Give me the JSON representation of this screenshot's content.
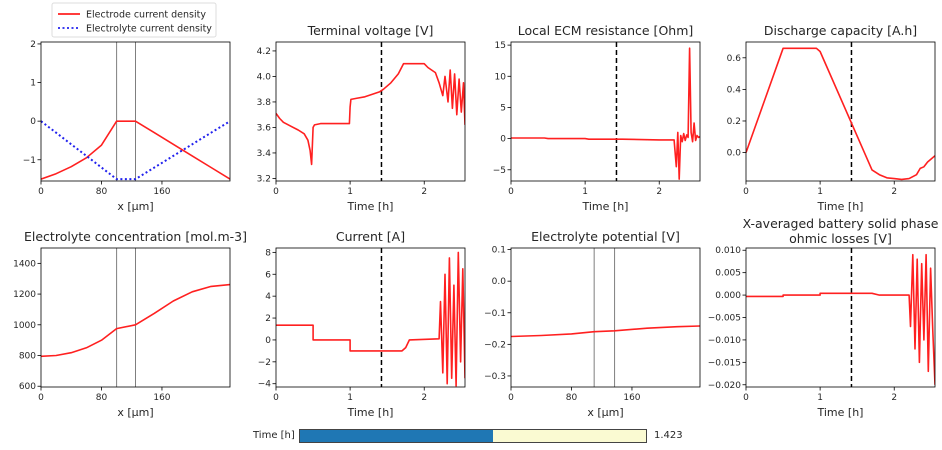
{
  "legend": {
    "entries": [
      {
        "label": "Electrode current density",
        "color": "#ff2020",
        "style": "solid"
      },
      {
        "label": "Electrolyte current density",
        "color": "#2222ee",
        "style": "dotted"
      }
    ]
  },
  "slider": {
    "label": "Time [h]",
    "value_text": "1.423",
    "value": 1.423,
    "min": 0,
    "max": 2.55,
    "fill_color": "#1f77b4",
    "track_color": "#fafad2"
  },
  "chart_data": [
    {
      "type": "line",
      "title": "",
      "xlabel": "x [μm]",
      "ylabel": "",
      "xlim": [
        0,
        250
      ],
      "ylim": [
        -1.55,
        2.05
      ],
      "xticks": [
        0,
        80,
        160
      ],
      "yticks": [
        -1,
        0,
        1,
        2
      ],
      "tick_labels_x": [
        "0",
        "80",
        "160"
      ],
      "tick_labels_y": [
        "−1",
        "0",
        "1",
        "2"
      ],
      "vlines": [
        100,
        125
      ],
      "marker_time": null,
      "series": [
        {
          "name": "Electrode current density",
          "color": "#ff2020",
          "dash": "solid",
          "x": [
            0,
            20,
            40,
            60,
            80,
            100,
            125,
            150,
            175,
            200,
            225,
            250
          ],
          "y": [
            -1.5,
            -1.36,
            -1.18,
            -0.95,
            -0.62,
            0,
            0,
            -0.3,
            -0.6,
            -0.9,
            -1.2,
            -1.5
          ]
        },
        {
          "name": "Electrolyte current density",
          "color": "#2222ee",
          "dash": "dotted",
          "x": [
            0,
            20,
            40,
            60,
            80,
            100,
            125,
            150,
            175,
            200,
            225,
            250
          ],
          "y": [
            0,
            -0.3,
            -0.6,
            -0.9,
            -1.2,
            -1.5,
            -1.5,
            -1.2,
            -0.9,
            -0.6,
            -0.3,
            0
          ]
        }
      ]
    },
    {
      "type": "line",
      "title": "Terminal voltage [V]",
      "xlabel": "Time [h]",
      "ylabel": "",
      "xlim": [
        0,
        2.55
      ],
      "ylim": [
        3.18,
        4.27
      ],
      "xticks": [
        0,
        1,
        2
      ],
      "yticks": [
        3.2,
        3.4,
        3.6,
        3.8,
        4.0,
        4.2
      ],
      "tick_labels_x": [
        "0",
        "1",
        "2"
      ],
      "tick_labels_y": [
        "3.2",
        "3.4",
        "3.6",
        "3.8",
        "4.0",
        "4.2"
      ],
      "vlines": [],
      "marker_time": 1.423,
      "series": [
        {
          "name": "Terminal voltage",
          "color": "#ff2020",
          "dash": "solid",
          "x": [
            0,
            0.05,
            0.1,
            0.2,
            0.3,
            0.38,
            0.43,
            0.46,
            0.48,
            0.5,
            0.52,
            0.6,
            0.8,
            0.99,
            1.0,
            1.01,
            1.1,
            1.2,
            1.3,
            1.4,
            1.45,
            1.55,
            1.65,
            1.72,
            1.8,
            2.0,
            2.05,
            2.15,
            2.2,
            2.25,
            2.28,
            2.32,
            2.35,
            2.38,
            2.41,
            2.44,
            2.47,
            2.5,
            2.53,
            2.55
          ],
          "y": [
            3.71,
            3.67,
            3.64,
            3.61,
            3.58,
            3.55,
            3.5,
            3.42,
            3.31,
            3.6,
            3.62,
            3.63,
            3.63,
            3.63,
            3.76,
            3.82,
            3.83,
            3.84,
            3.86,
            3.88,
            3.9,
            3.95,
            4.02,
            4.1,
            4.1,
            4.1,
            4.07,
            4.03,
            3.95,
            3.85,
            4.0,
            3.8,
            4.05,
            3.75,
            4.02,
            3.7,
            3.98,
            3.72,
            3.95,
            3.62
          ]
        }
      ]
    },
    {
      "type": "line",
      "title": "Local ECM resistance [Ohm]",
      "xlabel": "Time [h]",
      "ylabel": "",
      "xlim": [
        0,
        2.55
      ],
      "ylim": [
        -6.8,
        15.5
      ],
      "xticks": [
        0,
        1,
        2
      ],
      "yticks": [
        -5,
        0,
        5,
        10,
        15
      ],
      "tick_labels_x": [
        "0",
        "1",
        "2"
      ],
      "tick_labels_y": [
        "−5",
        "0",
        "5",
        "10",
        "15"
      ],
      "vlines": [],
      "marker_time": 1.423,
      "series": [
        {
          "name": "Local ECM resistance",
          "color": "#ff2020",
          "dash": "solid",
          "x": [
            0,
            0.45,
            0.5,
            1.0,
            1.05,
            1.5,
            2.0,
            2.2,
            2.23,
            2.25,
            2.27,
            2.29,
            2.31,
            2.33,
            2.35,
            2.37,
            2.39,
            2.41,
            2.43,
            2.45,
            2.47,
            2.49,
            2.51,
            2.53,
            2.55
          ],
          "y": [
            0.1,
            0.1,
            0.0,
            0.0,
            -0.1,
            -0.1,
            -0.2,
            -0.2,
            -4.5,
            1.0,
            -6.5,
            0.5,
            -0.5,
            0.8,
            -0.3,
            0.6,
            0.2,
            14.5,
            1.0,
            -0.5,
            2.5,
            -0.3,
            0.5,
            0.2,
            0.3
          ]
        }
      ]
    },
    {
      "type": "line",
      "title": "Discharge capacity [A.h]",
      "xlabel": "Time [h]",
      "ylabel": "",
      "xlim": [
        0,
        2.55
      ],
      "ylim": [
        -0.18,
        0.7
      ],
      "xticks": [
        0,
        1,
        2
      ],
      "yticks": [
        0.0,
        0.2,
        0.4,
        0.6
      ],
      "tick_labels_x": [
        "0",
        "1",
        "2"
      ],
      "tick_labels_y": [
        "0.0",
        "0.2",
        "0.4",
        "0.6"
      ],
      "vlines": [],
      "marker_time": 1.423,
      "series": [
        {
          "name": "Discharge capacity",
          "color": "#ff2020",
          "dash": "solid",
          "x": [
            0,
            0.5,
            0.95,
            1.0,
            1.7,
            1.8,
            1.9,
            2.0,
            2.1,
            2.2,
            2.3,
            2.35,
            2.4,
            2.45,
            2.5,
            2.55
          ],
          "y": [
            0.0,
            0.66,
            0.66,
            0.64,
            -0.11,
            -0.14,
            -0.16,
            -0.165,
            -0.17,
            -0.165,
            -0.14,
            -0.1,
            -0.09,
            -0.06,
            -0.04,
            -0.02
          ]
        }
      ]
    },
    {
      "type": "line",
      "title": "Electrolyte concentration [mol.m-3]",
      "xlabel": "x [μm]",
      "ylabel": "",
      "xlim": [
        0,
        250
      ],
      "ylim": [
        595,
        1500
      ],
      "xticks": [
        0,
        80,
        160
      ],
      "yticks": [
        600,
        800,
        1000,
        1200,
        1400
      ],
      "tick_labels_x": [
        "0",
        "80",
        "160"
      ],
      "tick_labels_y": [
        "600",
        "800",
        "1000",
        "1200",
        "1400"
      ],
      "vlines": [
        100,
        125
      ],
      "marker_time": null,
      "series": [
        {
          "name": "Electrolyte concentration",
          "color": "#ff2020",
          "dash": "solid",
          "x": [
            0,
            20,
            40,
            60,
            80,
            100,
            125,
            150,
            175,
            200,
            225,
            250
          ],
          "y": [
            795,
            800,
            818,
            850,
            900,
            975,
            1000,
            1075,
            1155,
            1215,
            1250,
            1262
          ]
        }
      ]
    },
    {
      "type": "line",
      "title": "Current [A]",
      "xlabel": "Time [h]",
      "ylabel": "",
      "xlim": [
        0,
        2.55
      ],
      "ylim": [
        -4.3,
        8.4
      ],
      "xticks": [
        0,
        1,
        2
      ],
      "yticks": [
        -4,
        -2,
        0,
        2,
        4,
        6,
        8
      ],
      "tick_labels_x": [
        "0",
        "1",
        "2"
      ],
      "tick_labels_y": [
        "−4",
        "−2",
        "0",
        "2",
        "4",
        "6",
        "8"
      ],
      "vlines": [],
      "marker_time": 1.423,
      "series": [
        {
          "name": "Current",
          "color": "#ff2020",
          "dash": "solid",
          "x": [
            0,
            0.5,
            0.5,
            1.0,
            1.0,
            1.7,
            1.75,
            1.8,
            2.2,
            2.22,
            2.25,
            2.28,
            2.31,
            2.34,
            2.37,
            2.4,
            2.43,
            2.46,
            2.49,
            2.52,
            2.55
          ],
          "y": [
            1.35,
            1.35,
            0.0,
            0.0,
            -1.0,
            -1.0,
            -0.7,
            0.0,
            0.1,
            3.5,
            -3.0,
            6.0,
            -4.0,
            7.5,
            -3.5,
            5.0,
            -4.2,
            8.0,
            -2.0,
            6.5,
            -3.5
          ]
        }
      ]
    },
    {
      "type": "line",
      "title": "Electrolyte potential [V]",
      "xlabel": "x [μm]",
      "ylabel": "",
      "xlim": [
        0,
        250
      ],
      "ylim": [
        -0.335,
        0.105
      ],
      "xticks": [
        0,
        80,
        160
      ],
      "yticks": [
        -0.3,
        -0.2,
        -0.1,
        0.0,
        0.1
      ],
      "tick_labels_x": [
        "0",
        "80",
        "160"
      ],
      "tick_labels_y": [
        "−0.3",
        "−0.2",
        "−0.1",
        "0.0",
        "0.1"
      ],
      "vlines": [
        110,
        137
      ],
      "marker_time": null,
      "series": [
        {
          "name": "Electrolyte potential",
          "color": "#ff2020",
          "dash": "solid",
          "x": [
            0,
            40,
            80,
            110,
            137,
            180,
            220,
            250
          ],
          "y": [
            -0.175,
            -0.172,
            -0.167,
            -0.16,
            -0.157,
            -0.149,
            -0.144,
            -0.142
          ]
        }
      ]
    },
    {
      "type": "line",
      "title": "X-averaged battery solid phase ohmic losses [V]",
      "title_lines": [
        "X-averaged battery solid phase",
        "ohmic losses [V]"
      ],
      "xlabel": "Time [h]",
      "ylabel": "",
      "xlim": [
        0,
        2.55
      ],
      "ylim": [
        -0.0205,
        0.0105
      ],
      "xticks": [
        0,
        1,
        2
      ],
      "yticks": [
        -0.02,
        -0.015,
        -0.01,
        -0.005,
        0.0,
        0.005,
        0.01
      ],
      "tick_labels_x": [
        "0",
        "1",
        "2"
      ],
      "tick_labels_y": [
        "−0.020",
        "−0.015",
        "−0.010",
        "−0.005",
        "0.000",
        "0.005",
        "0.010"
      ],
      "vlines": [],
      "marker_time": 1.423,
      "series": [
        {
          "name": "Solid phase ohmic losses",
          "color": "#ff2020",
          "dash": "solid",
          "x": [
            0,
            0.5,
            0.5,
            1.0,
            1.0,
            1.7,
            1.8,
            2.2,
            2.22,
            2.25,
            2.28,
            2.31,
            2.34,
            2.37,
            2.4,
            2.43,
            2.46,
            2.49,
            2.52,
            2.55
          ],
          "y": [
            -0.0003,
            -0.0003,
            0.0,
            0.0,
            0.0004,
            0.0004,
            0.0,
            0.0,
            -0.007,
            0.009,
            -0.012,
            0.008,
            -0.015,
            0.007,
            -0.01,
            0.009,
            -0.017,
            0.006,
            -0.008,
            -0.02
          ]
        }
      ]
    }
  ]
}
